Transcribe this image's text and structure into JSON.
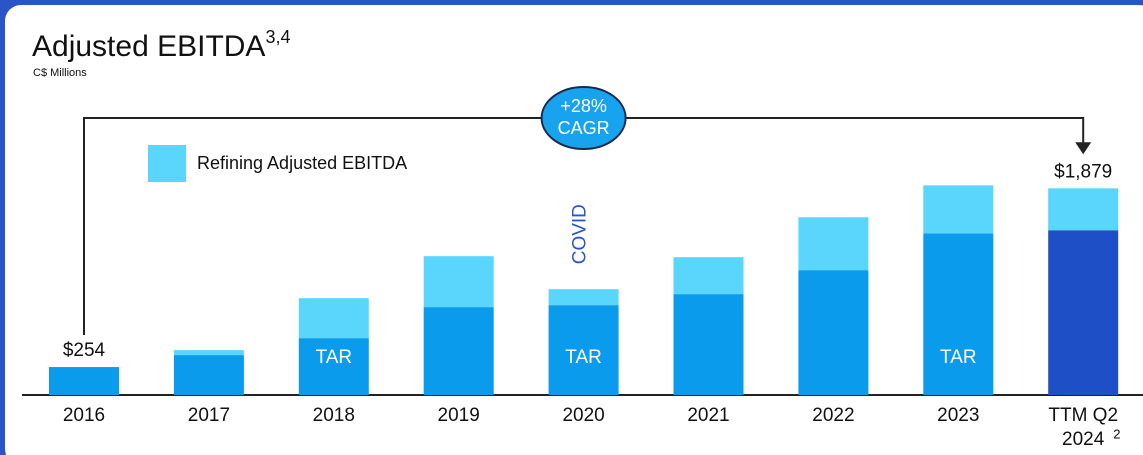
{
  "chart_data": {
    "type": "stacked-bar",
    "title": "Adjusted EBITDA",
    "title_superscript": "3,4",
    "subtitle": "C$ Millions",
    "categories": [
      "2016",
      "2017",
      "2018",
      "2019",
      "2020",
      "2021",
      "2022",
      "2023",
      [
        "TTM Q2",
        "2024"
      ]
    ],
    "category_footnote": {
      "category": 8,
      "text": "2"
    },
    "series": [
      {
        "color": "#0a9bec",
        "highlight": {
          "category": 8,
          "color": "#1f4fc6"
        },
        "values": [
          254,
          363,
          517,
          799,
          817,
          917,
          1135,
          1470,
          1498
        ]
      },
      {
        "name": "Refining Adjusted EBITDA",
        "color": "#5ad6fc",
        "values": [
          0,
          45,
          363,
          463,
          145,
          336,
          481,
          436,
          381
        ]
      }
    ],
    "total_labels": [
      {
        "category": 0,
        "value": 254,
        "label": "$254"
      },
      {
        "category": 8,
        "value": 1879,
        "label": "$1,879"
      }
    ],
    "bar_annotations": [
      {
        "category": 2,
        "text": "TAR"
      },
      {
        "category": 4,
        "text": "TAR"
      },
      {
        "category": 7,
        "text": "TAR"
      }
    ],
    "covid_annotation": {
      "category": 4,
      "text": "COVID"
    },
    "cagr": {
      "from": 0,
      "to": 8,
      "lines": [
        "+28%",
        "CAGR"
      ]
    },
    "ylim": [
      0,
      2300
    ]
  }
}
